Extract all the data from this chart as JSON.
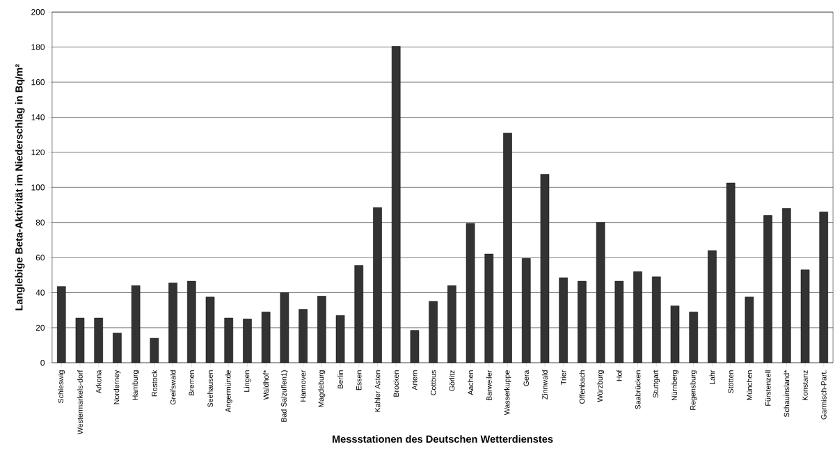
{
  "chart_data": {
    "type": "bar",
    "xlabel": "Messstationen des Deutschen Wetterdienstes",
    "ylabel": "Langlebige Beta-Aktivität im Niederschlag in Bq/m²",
    "categories": [
      "Schleswig",
      "Westermarkels-dorf",
      "Arkona",
      "Norderney",
      "Hamburg",
      "Rostock",
      "Greifswald",
      "Bremen",
      "Seehausen",
      "Angermünde",
      "Lingen",
      "Waldhof*",
      "Bad Salzuflen1)",
      "Hannover",
      "Magdeburg",
      "Berlin",
      "Essen",
      "Kahler Asten",
      "Brocken",
      "Artern",
      "Cottbus",
      "Görlitz",
      "Aachen",
      "Barweiler",
      "Wasserkuppe",
      "Gera",
      "Zinnwald",
      "Trier",
      "Offenbach",
      "Würzburg",
      "Hof",
      "Saabrücken",
      "Stuttgart",
      "Nürnberg",
      "Regensburg",
      "Lahr",
      "Stötten",
      "München",
      "Fürstenzell",
      "Schauinsland*",
      "Konstanz",
      "Garmisch-Part."
    ],
    "values": [
      43.5,
      25.5,
      25.5,
      17,
      44,
      14,
      45.5,
      46.5,
      37.5,
      25.5,
      25,
      29,
      40,
      30.5,
      38,
      27,
      55.5,
      88.5,
      180.5,
      18.5,
      35,
      44,
      79.5,
      62,
      131,
      59.5,
      107.5,
      48.5,
      46.5,
      80,
      46.5,
      52,
      49,
      32.5,
      29,
      64,
      102.5,
      37.5,
      84,
      88,
      53,
      86
    ],
    "color": "#333333",
    "ylim": [
      0,
      200
    ],
    "yticks": [
      0,
      20,
      40,
      60,
      80,
      100,
      120,
      140,
      160,
      180,
      200
    ],
    "grid": "y"
  }
}
